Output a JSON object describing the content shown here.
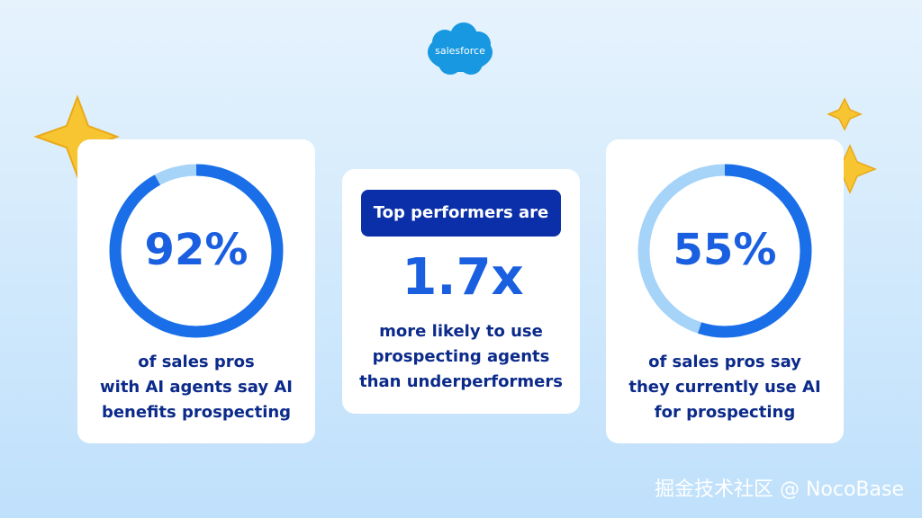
{
  "logo": "salesforce",
  "cards": [
    {
      "stat": {
        "value": 92,
        "label": "92%"
      },
      "lines": [
        "of sales pros",
        "with AI agents say AI",
        "benefits prospecting"
      ]
    },
    {
      "badge": "Top performers are",
      "stat": "1.7x",
      "lines": [
        "more likely to use",
        "prospecting agents",
        "than underperformers"
      ]
    },
    {
      "stat": {
        "value": 55,
        "label": "55%"
      },
      "lines": [
        "of sales pros say",
        "they currently use AI",
        "for prospecting"
      ]
    }
  ],
  "watermark": "掘金技术社区 @ NocoBase"
}
